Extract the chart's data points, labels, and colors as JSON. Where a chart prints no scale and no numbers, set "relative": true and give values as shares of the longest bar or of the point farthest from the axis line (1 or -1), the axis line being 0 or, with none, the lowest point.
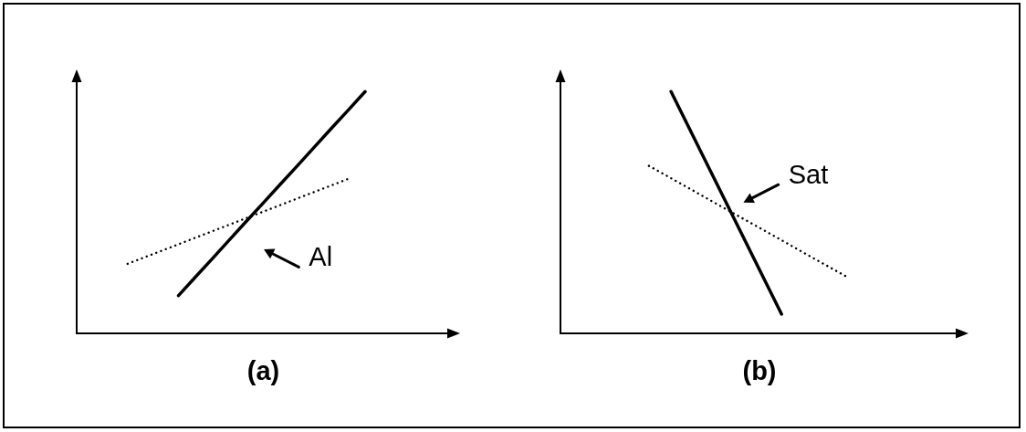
{
  "chart_data": [
    {
      "type": "line",
      "xlabel": "(a)",
      "relative": true,
      "marker": "none",
      "categories": [
        null,
        null,
        null,
        null,
        null,
        null,
        null,
        null,
        null,
        null,
        null,
        null,
        null,
        null,
        null,
        null,
        null,
        null,
        null,
        null,
        null,
        null,
        null
      ],
      "series": [
        {
          "name": "Al",
          "color": "#000000",
          "line_style": "solid",
          "values": [
            null,
            null,
            null,
            null,
            null,
            null,
            0.157,
            0.234,
            0.31,
            0.387,
            0.464,
            0.54,
            0.617,
            0.693,
            0.77,
            0.847,
            0.923,
            1,
            null,
            null,
            null,
            null,
            null
          ]
        },
        {
          "color": "#000000",
          "line_style": "dotted",
          "values": [
            null,
            null,
            null,
            0.288,
            0.315,
            0.342,
            0.369,
            0.396,
            0.423,
            0.45,
            0.477,
            0.504,
            0.531,
            0.558,
            0.585,
            0.612,
            0.639,
            null,
            null,
            null,
            null,
            null,
            null
          ]
        }
      ]
    },
    {
      "type": "line",
      "xlabel": "(b)",
      "relative": true,
      "marker": "none",
      "categories": [
        null,
        null,
        null,
        null,
        null,
        null,
        null,
        null,
        null,
        null,
        null,
        null,
        null,
        null,
        null,
        null,
        null,
        null,
        null
      ],
      "series": [
        {
          "name": "Sat",
          "color": "#000000",
          "line_style": "solid",
          "values": [
            null,
            null,
            null,
            null,
            null,
            1,
            0.816,
            0.632,
            0.448,
            0.264,
            0.08,
            null,
            null,
            null,
            null,
            null,
            null,
            null,
            null
          ]
        },
        {
          "color": "#000000",
          "line_style": "dotted",
          "values": [
            null,
            null,
            null,
            null,
            0.693,
            0.642,
            0.591,
            0.539,
            0.488,
            0.437,
            0.386,
            0.334,
            0.283,
            0.232,
            null,
            null,
            null,
            null,
            null
          ]
        }
      ]
    }
  ]
}
